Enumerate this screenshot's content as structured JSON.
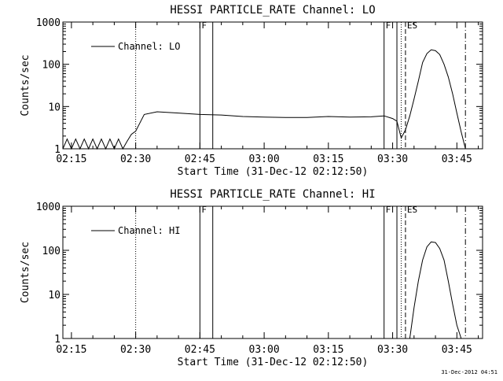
{
  "footer": {
    "timestamp": "31-Dec-2012 04:51"
  },
  "chart_data": [
    {
      "type": "line",
      "title": "HESSI PARTICLE_RATE Channel: LO",
      "xlabel": "Start Time (31-Dec-12 02:12:50)",
      "ylabel": "Counts/sec",
      "y_scale": "log",
      "ylim": [
        1,
        1000
      ],
      "xlim": [
        "02:13",
        "03:51"
      ],
      "x_ticks": [
        "02:15",
        "02:30",
        "02:45",
        "03:00",
        "03:15",
        "03:30",
        "03:45"
      ],
      "y_ticks": [
        "1",
        "10",
        "100",
        "1000"
      ],
      "legend": {
        "position": "top-left",
        "entries": [
          "Channel: LO"
        ]
      },
      "markers": [
        {
          "time": "02:30",
          "style": "dotted",
          "label": ""
        },
        {
          "time": "02:45",
          "style": "solid",
          "label": "F"
        },
        {
          "time": "02:48",
          "style": "solid",
          "label": ""
        },
        {
          "time": "03:28",
          "style": "solid",
          "label": "F"
        },
        {
          "time": "03:31",
          "style": "solid",
          "label": ""
        },
        {
          "time": "03:32",
          "style": "dotted",
          "label": ""
        },
        {
          "time": "03:33",
          "style": "dashed",
          "label": "ES"
        },
        {
          "time": "03:47",
          "style": "dashdot",
          "label": ""
        }
      ],
      "series": [
        {
          "name": "Channel: LO",
          "x": [
            "02:13",
            "02:14",
            "02:15",
            "02:16",
            "02:17",
            "02:18",
            "02:19",
            "02:20",
            "02:21",
            "02:22",
            "02:23",
            "02:24",
            "02:25",
            "02:26",
            "02:27",
            "02:28",
            "02:29",
            "02:30",
            "02:32",
            "02:35",
            "02:40",
            "02:45",
            "02:50",
            "02:55",
            "03:00",
            "03:05",
            "03:10",
            "03:15",
            "03:20",
            "03:25",
            "03:28",
            "03:30",
            "03:31",
            "03:32",
            "03:33",
            "03:34",
            "03:35",
            "03:36",
            "03:37",
            "03:38",
            "03:39",
            "03:40",
            "03:41",
            "03:42",
            "03:43",
            "03:44",
            "03:45",
            "03:46",
            "03:47"
          ],
          "values": [
            1.0,
            1.7,
            1.0,
            1.7,
            1.0,
            1.7,
            1.0,
            1.7,
            1.0,
            1.7,
            1.0,
            1.7,
            1.0,
            1.7,
            1.0,
            1.5,
            2.2,
            2.6,
            6.5,
            7.5,
            7.0,
            6.5,
            6.3,
            5.8,
            5.6,
            5.5,
            5.5,
            5.8,
            5.6,
            5.7,
            6.0,
            5.2,
            4.5,
            1.8,
            2.8,
            6,
            15,
            40,
            110,
            180,
            220,
            210,
            170,
            100,
            50,
            20,
            7,
            2.5,
            1.0
          ]
        }
      ]
    },
    {
      "type": "line",
      "title": "HESSI PARTICLE_RATE Channel: HI",
      "xlabel": "Start Time (31-Dec-12 02:12:50)",
      "ylabel": "Counts/sec",
      "y_scale": "log",
      "ylim": [
        1,
        1000
      ],
      "xlim": [
        "02:13",
        "03:51"
      ],
      "x_ticks": [
        "02:15",
        "02:30",
        "02:45",
        "03:00",
        "03:15",
        "03:30",
        "03:45"
      ],
      "y_ticks": [
        "1",
        "10",
        "100",
        "1000"
      ],
      "legend": {
        "position": "top-left",
        "entries": [
          "Channel: HI"
        ]
      },
      "markers": [
        {
          "time": "02:30",
          "style": "dotted",
          "label": ""
        },
        {
          "time": "02:45",
          "style": "solid",
          "label": "F"
        },
        {
          "time": "02:48",
          "style": "solid",
          "label": ""
        },
        {
          "time": "03:28",
          "style": "solid",
          "label": "F"
        },
        {
          "time": "03:31",
          "style": "solid",
          "label": ""
        },
        {
          "time": "03:32",
          "style": "dotted",
          "label": ""
        },
        {
          "time": "03:33",
          "style": "dashed",
          "label": "ES"
        },
        {
          "time": "03:47",
          "style": "dashdot",
          "label": ""
        }
      ],
      "series": [
        {
          "name": "Channel: HI",
          "x": [
            "03:34",
            "03:35",
            "03:36",
            "03:37",
            "03:38",
            "03:39",
            "03:40",
            "03:41",
            "03:42",
            "03:43",
            "03:44",
            "03:45",
            "03:46"
          ],
          "values": [
            1.0,
            5,
            20,
            60,
            120,
            155,
            150,
            110,
            60,
            20,
            6,
            2,
            1.0
          ]
        }
      ]
    }
  ]
}
